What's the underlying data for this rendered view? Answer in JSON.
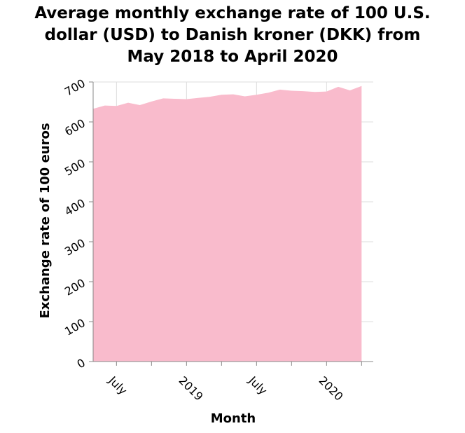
{
  "chart_data": {
    "type": "area",
    "title_lines": [
      "Average monthly exchange rate of 100 U.S.",
      "dollar (USD) to Danish kroner (DKK) from",
      "May 2018 to April 2020"
    ],
    "xlabel": "Month",
    "ylabel": "Exchange rate of 100 euros",
    "ylim": [
      0,
      700
    ],
    "y_ticks": [
      0,
      100,
      200,
      300,
      400,
      500,
      600,
      700
    ],
    "x_ticks": [
      {
        "date": "2018-07",
        "label": "July"
      },
      {
        "date": "2019-01",
        "label": "2019"
      },
      {
        "date": "2019-07",
        "label": "July"
      },
      {
        "date": "2020-01",
        "label": "2020"
      }
    ],
    "x_range": [
      "2018-05",
      "2020-05"
    ],
    "grid": true,
    "color": "#f9bbcc",
    "x": [
      "2018-05",
      "2018-06",
      "2018-07",
      "2018-08",
      "2018-09",
      "2018-10",
      "2018-11",
      "2018-12",
      "2019-01",
      "2019-02",
      "2019-03",
      "2019-04",
      "2019-05",
      "2019-06",
      "2019-07",
      "2019-08",
      "2019-09",
      "2019-10",
      "2019-11",
      "2019-12",
      "2020-01",
      "2020-02",
      "2020-03",
      "2020-04"
    ],
    "values": [
      633,
      641,
      640,
      648,
      642,
      651,
      659,
      658,
      657,
      660,
      663,
      668,
      669,
      664,
      668,
      673,
      681,
      678,
      677,
      675,
      676,
      688,
      679,
      690
    ]
  }
}
